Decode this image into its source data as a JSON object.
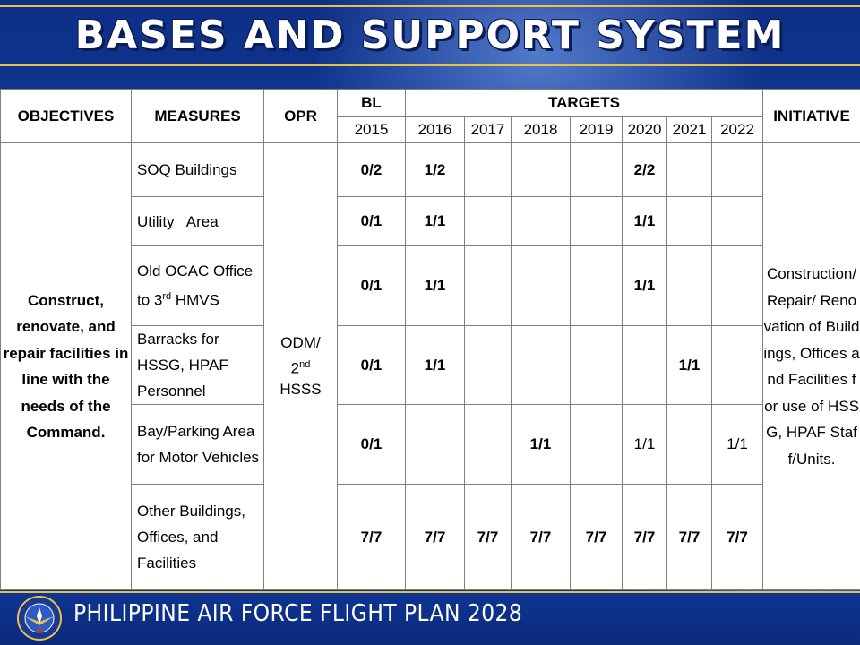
{
  "slide": {
    "title": "BASES AND SUPPORT SYSTEM",
    "footer": "PHILIPPINE AIR FORCE FLIGHT PLAN 2028"
  },
  "header": {
    "objectives": "OBJECTIVES",
    "measures": "MEASURES",
    "opr": "OPR",
    "bl": "BL",
    "targets": "TARGETS",
    "initiative": "INITIATIVE",
    "years": [
      "2015",
      "2016",
      "2017",
      "2018",
      "2019",
      "2020",
      "2021",
      "2022"
    ]
  },
  "objective": "Construct, renovate, and repair facilities in line with the needs of the Command.",
  "opr": {
    "line1": "ODM/",
    "num": "2",
    "sup": "nd",
    "line3": "HSSS"
  },
  "initiative": "Construction/ Repair/ Renovation of Buildings, Offices and Facilities for use of HSSG, HPAF Staff/Units.",
  "rows": [
    {
      "measure": "SOQ Buildings",
      "values": [
        "0/2",
        "1/2",
        "",
        "",
        "",
        "2/2",
        "",
        ""
      ]
    },
    {
      "measure": "Utility   Area",
      "values": [
        "0/1",
        "1/1",
        "",
        "",
        "",
        "1/1",
        "",
        ""
      ]
    },
    {
      "measure_pre": "Old OCAC Office to 3",
      "measure_sup": "rd",
      "measure_post": " HMVS",
      "values": [
        "0/1",
        "1/1",
        "",
        "",
        "",
        "1/1",
        "",
        ""
      ]
    },
    {
      "measure": "Barracks for HSSG, HPAF Personnel",
      "values": [
        "0/1",
        "1/1",
        "",
        "",
        "",
        "",
        "1/1",
        ""
      ]
    },
    {
      "measure": "Bay/Parking Area for Motor Vehicles",
      "values": [
        "0/1",
        "",
        "",
        "1/1",
        "",
        "1/1",
        "",
        "1/1"
      ]
    },
    {
      "measure": "Other Buildings, Offices, and Facilities",
      "values": [
        "7/7",
        "7/7",
        "7/7",
        "7/7",
        "7/7",
        "7/7",
        "7/7",
        "7/7"
      ]
    }
  ]
}
